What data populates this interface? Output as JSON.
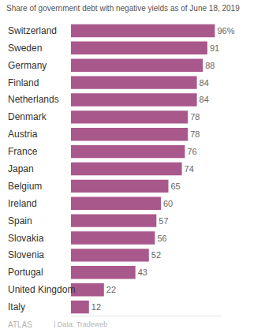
{
  "chart_data": {
    "type": "bar",
    "orientation": "horizontal",
    "title": "Share of government debt with negative yields as of June 18, 2019",
    "categories": [
      "Switzerland",
      "Sweden",
      "Germany",
      "Finland",
      "Netherlands",
      "Denmark",
      "Austria",
      "France",
      "Japan",
      "Belgium",
      "Ireland",
      "Spain",
      "Slovakia",
      "Slovenia",
      "Portugal",
      "United Kingdom",
      "Italy"
    ],
    "values": [
      96,
      91,
      88,
      84,
      84,
      78,
      78,
      76,
      74,
      65,
      60,
      57,
      56,
      52,
      43,
      22,
      12
    ],
    "value_labels": [
      "96%",
      "91",
      "88",
      "84",
      "84",
      "78",
      "78",
      "76",
      "74",
      "65",
      "60",
      "57",
      "56",
      "52",
      "43",
      "22",
      "12"
    ],
    "color": "#a9588c",
    "data_labels": true,
    "tick_labels": "y",
    "grid": false,
    "xlim": [
      0,
      100
    ],
    "annotations": [
      "ATLAS",
      "| Data: Tradeweb"
    ]
  }
}
